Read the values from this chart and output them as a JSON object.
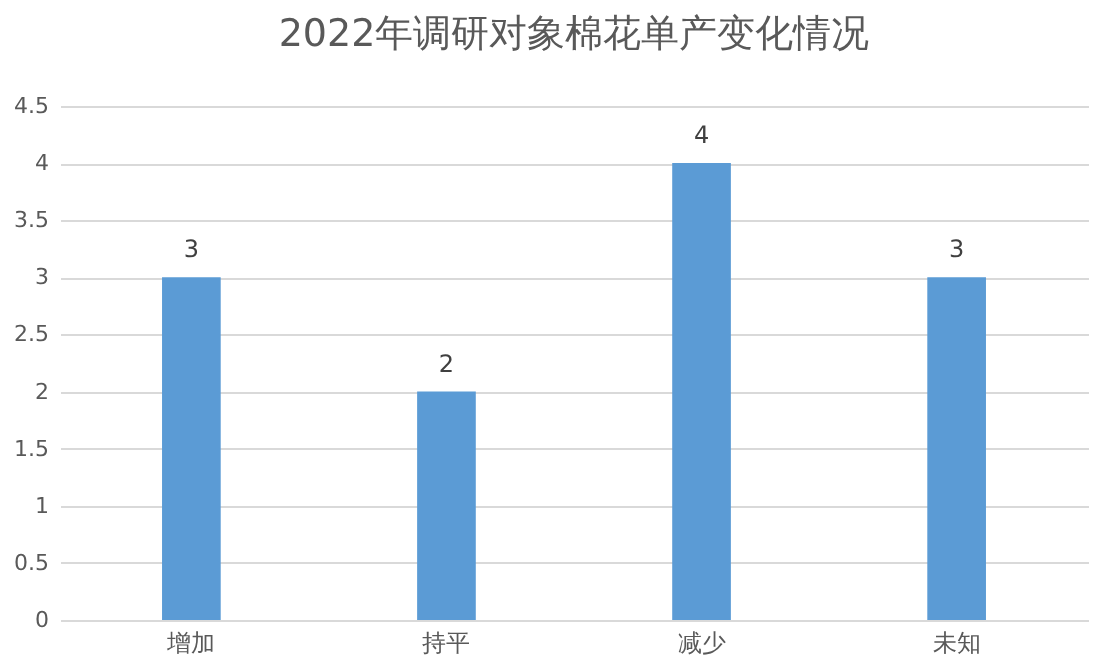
{
  "chart_data": {
    "type": "bar",
    "title": "2022年调研对象棉花单产变化情况",
    "categories": [
      "增加",
      "持平",
      "减少",
      "未知"
    ],
    "values": [
      3,
      2,
      4,
      3
    ],
    "color": "#5b9bd5",
    "ylim": [
      0,
      4.5
    ],
    "yticks": [
      0,
      0.5,
      1,
      1.5,
      2,
      2.5,
      3,
      3.5,
      4,
      4.5
    ],
    "grid": "y",
    "data_labels": true
  }
}
